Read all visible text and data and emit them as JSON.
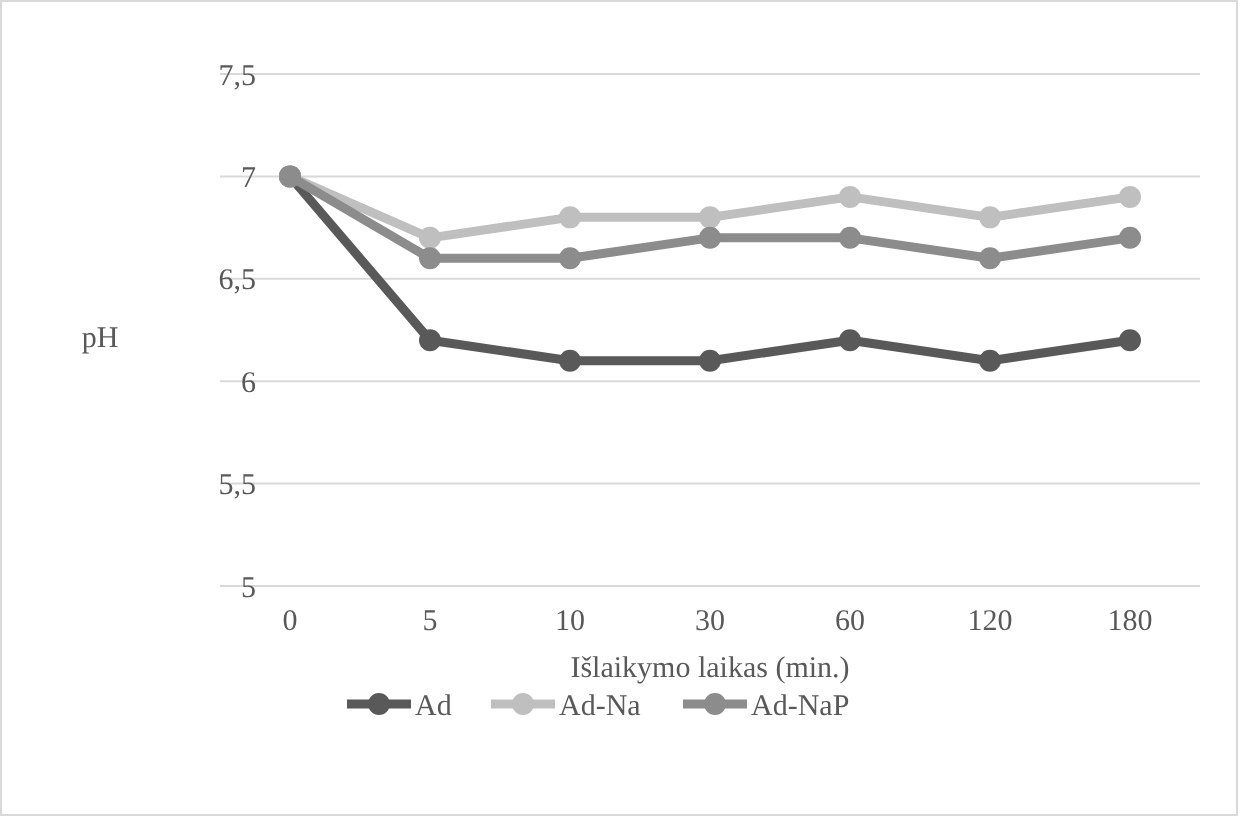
{
  "chart_data": {
    "type": "line",
    "xlabel": "Išlaikymo laikas (min.)",
    "ylabel": "pH",
    "categories": [
      "0",
      "5",
      "10",
      "30",
      "60",
      "120",
      "180"
    ],
    "series": [
      {
        "name": "Ad",
        "color": "#595959",
        "values": [
          7,
          6.2,
          6.1,
          6.1,
          6.2,
          6.1,
          6.2
        ]
      },
      {
        "name": "Ad-Na",
        "color": "#bfbfbf",
        "values": [
          7,
          6.7,
          6.8,
          6.8,
          6.9,
          6.8,
          6.9
        ]
      },
      {
        "name": "Ad-NaP",
        "color": "#8c8c8c",
        "values": [
          7,
          6.6,
          6.6,
          6.7,
          6.7,
          6.6,
          6.7
        ]
      }
    ],
    "ylim": [
      5,
      7.5
    ],
    "yticks": [
      5,
      {
        "value": 5.5,
        "label": "5,5"
      },
      6,
      {
        "value": 6.5,
        "label": "6,5"
      },
      7,
      {
        "value": 7.5,
        "label": "7,5"
      }
    ],
    "grid": "y",
    "legend": "bottom",
    "marker": "circle",
    "line_style": "solid"
  }
}
